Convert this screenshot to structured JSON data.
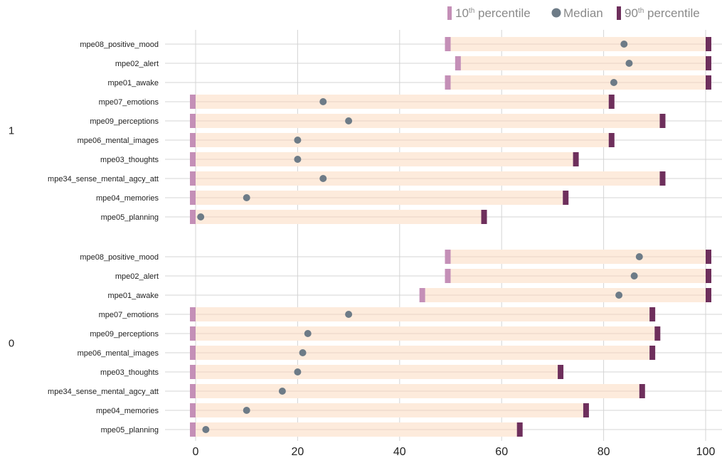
{
  "chart_data": {
    "type": "bar",
    "title": "",
    "xlabel": "",
    "ylabel": "",
    "xlim": [
      0,
      100
    ],
    "x_ticks": [
      0,
      20,
      40,
      60,
      80,
      100
    ],
    "legend": {
      "placement": "top-right",
      "items": [
        {
          "key": "p10",
          "base": "10",
          "sup": "th",
          "rest": " percentile"
        },
        {
          "key": "median",
          "base": "Median",
          "sup": "",
          "rest": ""
        },
        {
          "key": "p90",
          "base": "90",
          "sup": "th",
          "rest": " percentile"
        }
      ]
    },
    "colors": {
      "range": "#fdebdc",
      "p10": "#c48fb7",
      "median": "#6d7b87",
      "p90": "#6e2f5c",
      "grid": "#d4d4d4"
    },
    "groups": [
      {
        "label": "1",
        "rows": [
          {
            "name": "mpe08_positive_mood",
            "p10": 50,
            "median": 84,
            "p90": 100
          },
          {
            "name": "mpe02_alert",
            "p10": 52,
            "median": 85,
            "p90": 100
          },
          {
            "name": "mpe01_awake",
            "p10": 50,
            "median": 82,
            "p90": 100
          },
          {
            "name": "mpe07_emotions",
            "p10": 0,
            "median": 25,
            "p90": 81
          },
          {
            "name": "mpe09_perceptions",
            "p10": 0,
            "median": 30,
            "p90": 91
          },
          {
            "name": "mpe06_mental_images",
            "p10": 0,
            "median": 20,
            "p90": 81
          },
          {
            "name": "mpe03_thoughts",
            "p10": 0,
            "median": 20,
            "p90": 74
          },
          {
            "name": "mpe34_sense_mental_agcy_att",
            "p10": 0,
            "median": 25,
            "p90": 91
          },
          {
            "name": "mpe04_memories",
            "p10": 0,
            "median": 10,
            "p90": 72
          },
          {
            "name": "mpe05_planning",
            "p10": 0,
            "median": 1,
            "p90": 56
          }
        ]
      },
      {
        "label": "0",
        "rows": [
          {
            "name": "mpe08_positive_mood",
            "p10": 50,
            "median": 87,
            "p90": 100
          },
          {
            "name": "mpe02_alert",
            "p10": 50,
            "median": 86,
            "p90": 100
          },
          {
            "name": "mpe01_awake",
            "p10": 45,
            "median": 83,
            "p90": 100
          },
          {
            "name": "mpe07_emotions",
            "p10": 0,
            "median": 30,
            "p90": 89
          },
          {
            "name": "mpe09_perceptions",
            "p10": 0,
            "median": 22,
            "p90": 90
          },
          {
            "name": "mpe06_mental_images",
            "p10": 0,
            "median": 21,
            "p90": 89
          },
          {
            "name": "mpe03_thoughts",
            "p10": 0,
            "median": 20,
            "p90": 71
          },
          {
            "name": "mpe34_sense_mental_agcy_att",
            "p10": 0,
            "median": 17,
            "p90": 87
          },
          {
            "name": "mpe04_memories",
            "p10": 0,
            "median": 10,
            "p90": 76
          },
          {
            "name": "mpe05_planning",
            "p10": 0,
            "median": 2,
            "p90": 63
          }
        ]
      }
    ]
  }
}
